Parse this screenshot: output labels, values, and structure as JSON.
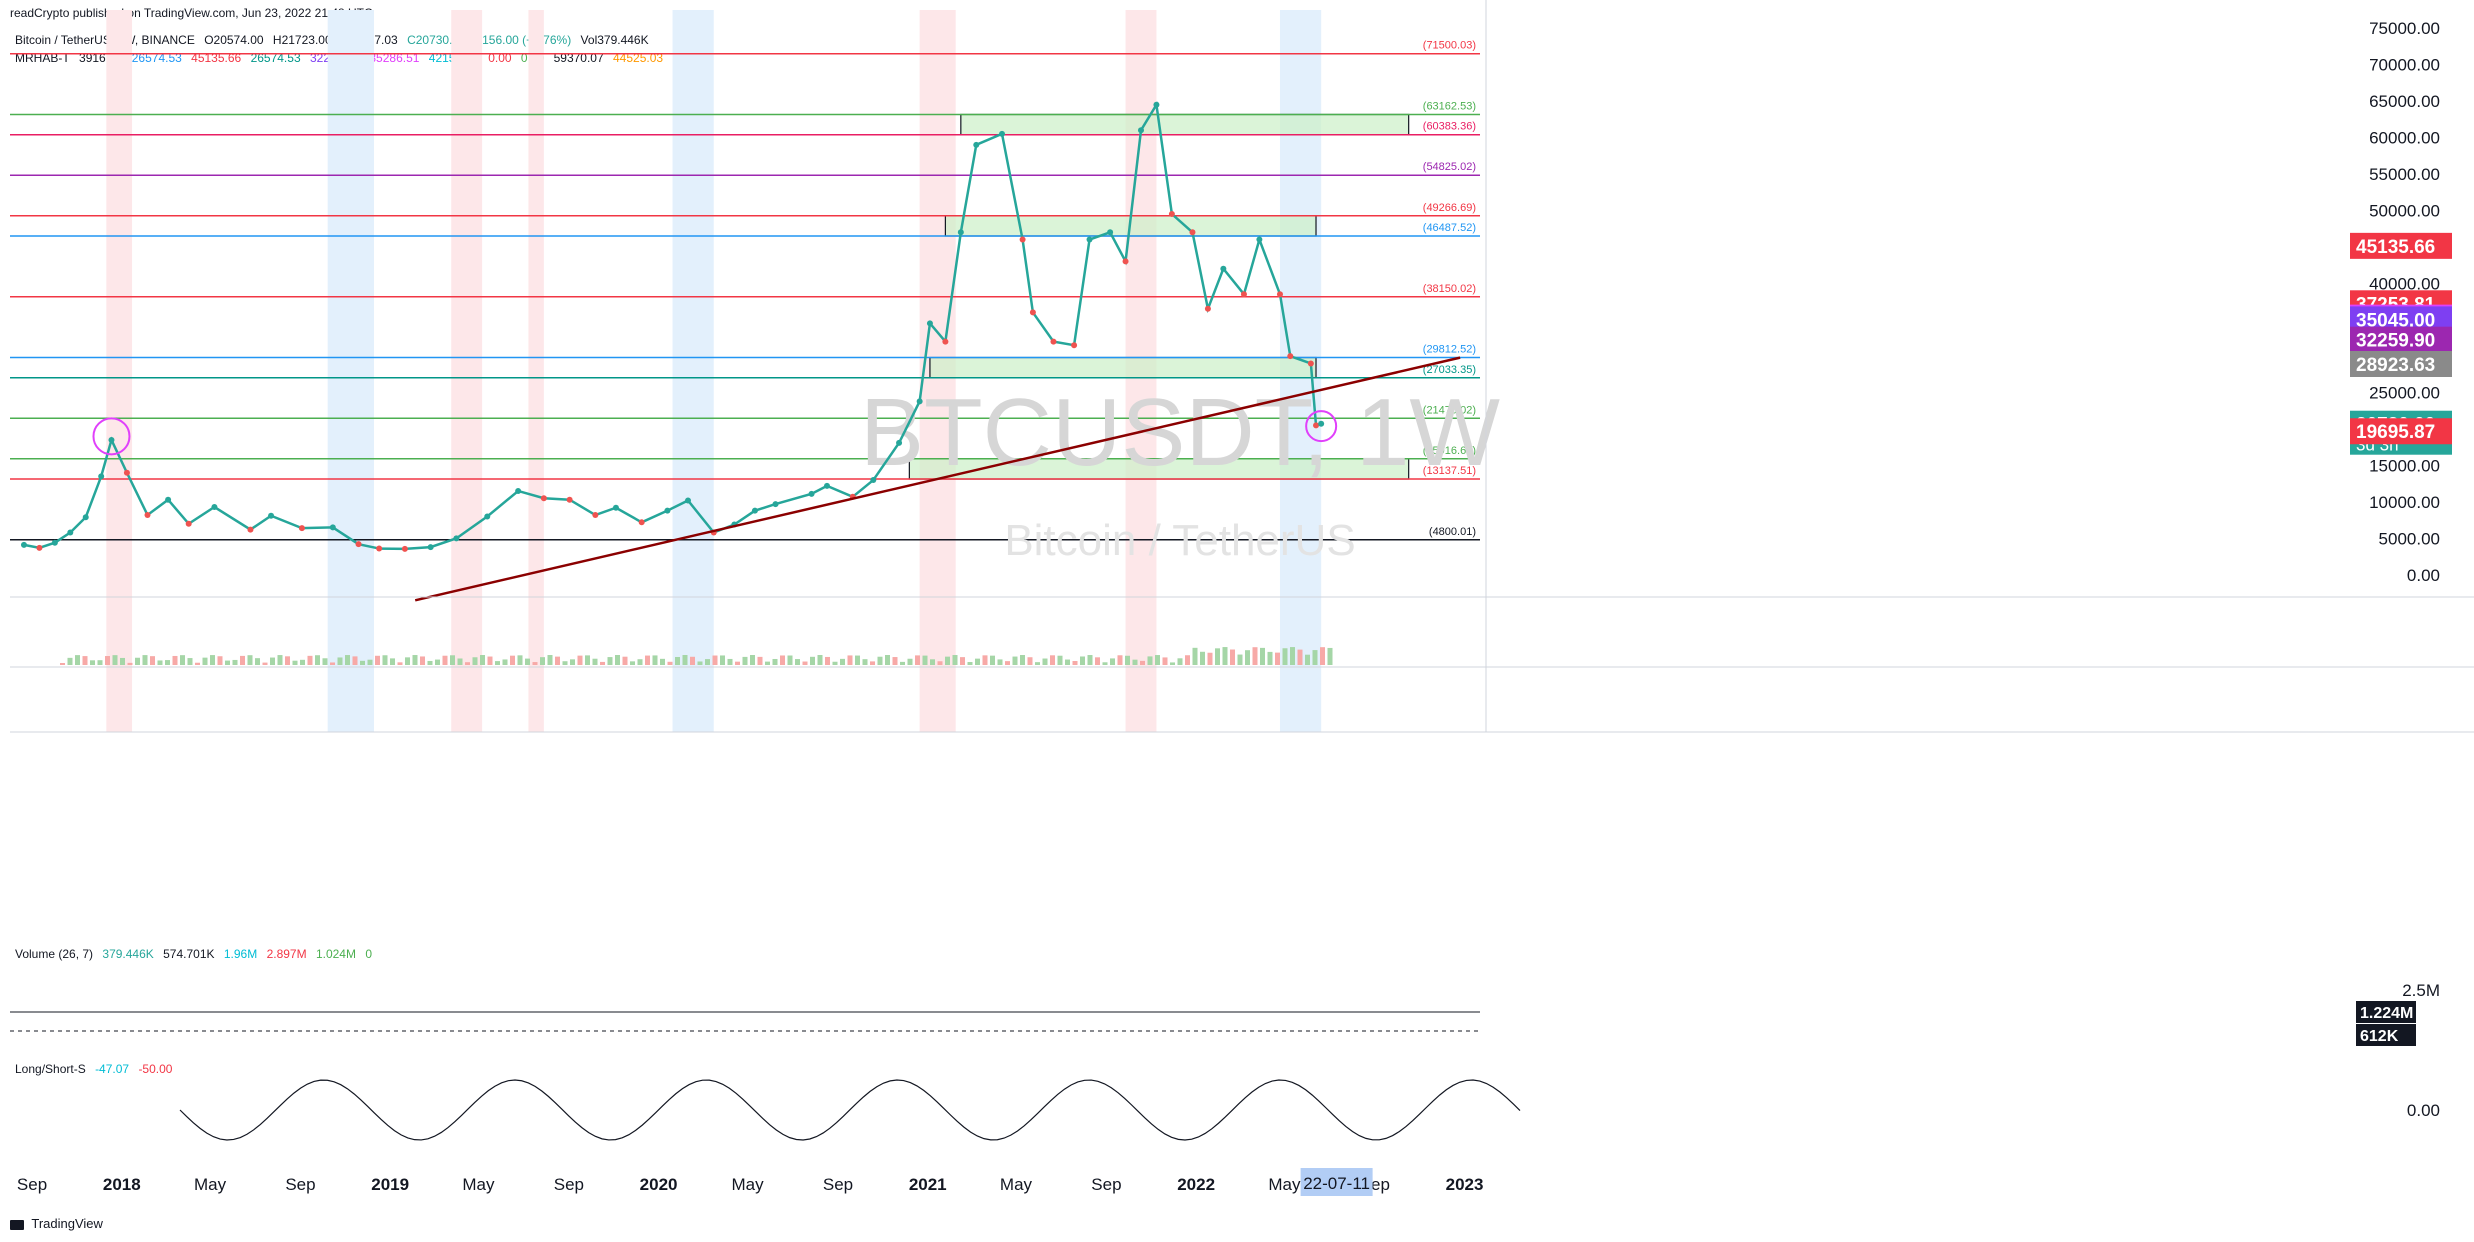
{
  "header": {
    "published": "readCrypto published on TradingView.com, Jun 23, 2022 21:48 UTC",
    "symbol": "Bitcoin / TetherUS, 1W, BINANCE",
    "open": "O20574.00",
    "high": "H21723.00",
    "low": "L19637.03",
    "close": "C20730.00",
    "change": "+156.00 (+0.76%)",
    "volume": "Vol379.446K",
    "indicator_name": "MRHAB-T",
    "indicator_values": [
      "3916.82",
      "26574.53",
      "45135.66",
      "26574.53",
      "32259.90",
      "35286.51",
      "42158.85",
      "0.00",
      "0.00",
      "59370.07",
      "44525.03"
    ]
  },
  "watermark": {
    "symbol": "BTCUSDT, 1W",
    "name": "Bitcoin / TetherUS"
  },
  "volume_pane": {
    "title": "Volume (26, 7)",
    "values": [
      "379.446K",
      "574.701K",
      "1.96M",
      "2.897M",
      "1.024M",
      "0"
    ],
    "axis_label": "2.5M",
    "badge_1224": "1.224M",
    "badge_612": "612K"
  },
  "ls_pane": {
    "title": "Long/Short-S",
    "values": [
      "-47.07",
      "-50.00"
    ],
    "axis_label": "0.00"
  },
  "footer": {
    "brand": "TradingView"
  },
  "colors": {
    "up": "#26a69a",
    "down": "#ef5350",
    "trend": "#8b0000",
    "box_fill": "#ccf0c8",
    "red_band": "#fde7e9",
    "blue_band": "#e3f0fc"
  },
  "chart_data": {
    "type": "line",
    "title": "BTCUSDT, 1W",
    "xlabel": "",
    "ylabel": "",
    "ylim": [
      -2500,
      77500
    ],
    "y_ticks": [
      0,
      5000,
      10000,
      15000,
      20000,
      25000,
      30000,
      35000,
      40000,
      45000,
      50000,
      55000,
      60000,
      65000,
      70000,
      75000
    ],
    "y_tick_labels": [
      "0.00",
      "5000.00",
      "10000.00",
      "15000.00",
      "20000.00",
      "25000.00",
      "30000.00",
      "35000.00",
      "40000.00",
      "45000.00",
      "50000.00",
      "55000.00",
      "60000.00",
      "65000.00",
      "70000.00",
      "75000.00"
    ],
    "x_ticks": [
      {
        "label": "Sep",
        "date": "2017-09-01"
      },
      {
        "label": "2018",
        "date": "2018-01-01"
      },
      {
        "label": "May",
        "date": "2018-05-01"
      },
      {
        "label": "Sep",
        "date": "2018-09-01"
      },
      {
        "label": "2019",
        "date": "2019-01-01"
      },
      {
        "label": "May",
        "date": "2019-05-01"
      },
      {
        "label": "Sep",
        "date": "2019-09-01"
      },
      {
        "label": "2020",
        "date": "2020-01-01"
      },
      {
        "label": "May",
        "date": "2020-05-01"
      },
      {
        "label": "Sep",
        "date": "2020-09-01"
      },
      {
        "label": "2021",
        "date": "2021-01-01"
      },
      {
        "label": "May",
        "date": "2021-05-01"
      },
      {
        "label": "Sep",
        "date": "2021-09-01"
      },
      {
        "label": "2022",
        "date": "2022-01-01"
      },
      {
        "label": "May",
        "date": "2022-05-01"
      },
      {
        "label": "Sep",
        "date": "2022-09-01"
      },
      {
        "label": "2023",
        "date": "2023-01-01"
      }
    ],
    "date_cursor": "22-07-11",
    "series": [
      {
        "color": "#26a69a",
        "points": [
          [
            "2017-08-21",
            4100
          ],
          [
            "2017-09-11",
            3700
          ],
          [
            "2017-10-02",
            4400
          ],
          [
            "2017-10-23",
            5800
          ],
          [
            "2017-11-13",
            7900
          ],
          [
            "2017-12-04",
            13500
          ],
          [
            "2017-12-18",
            18500
          ],
          [
            "2018-01-08",
            14000
          ],
          [
            "2018-02-05",
            8200
          ],
          [
            "2018-03-05",
            10300
          ],
          [
            "2018-04-02",
            7000
          ],
          [
            "2018-05-07",
            9300
          ],
          [
            "2018-06-25",
            6200
          ],
          [
            "2018-07-23",
            8100
          ],
          [
            "2018-09-03",
            6400
          ],
          [
            "2018-10-15",
            6500
          ],
          [
            "2018-11-19",
            4200
          ],
          [
            "2018-12-17",
            3600
          ],
          [
            "2019-01-21",
            3550
          ],
          [
            "2019-02-25",
            3800
          ],
          [
            "2019-04-01",
            5000
          ],
          [
            "2019-05-13",
            8000
          ],
          [
            "2019-06-24",
            11500
          ],
          [
            "2019-07-29",
            10500
          ],
          [
            "2019-09-02",
            10300
          ],
          [
            "2019-10-07",
            8200
          ],
          [
            "2019-11-04",
            9200
          ],
          [
            "2019-12-09",
            7200
          ],
          [
            "2020-01-13",
            8800
          ],
          [
            "2020-02-10",
            10200
          ],
          [
            "2020-03-16",
            5800
          ],
          [
            "2020-04-13",
            6900
          ],
          [
            "2020-05-11",
            8800
          ],
          [
            "2020-06-08",
            9700
          ],
          [
            "2020-07-27",
            11100
          ],
          [
            "2020-08-17",
            12200
          ],
          [
            "2020-09-21",
            10700
          ],
          [
            "2020-10-19",
            13000
          ],
          [
            "2020-11-23",
            18100
          ],
          [
            "2020-12-21",
            23800
          ],
          [
            "2021-01-04",
            34500
          ],
          [
            "2021-01-25",
            32000
          ],
          [
            "2021-02-15",
            47000
          ],
          [
            "2021-03-08",
            59000
          ],
          [
            "2021-04-12",
            60500
          ],
          [
            "2021-05-10",
            46000
          ],
          [
            "2021-05-24",
            36000
          ],
          [
            "2021-06-21",
            32000
          ],
          [
            "2021-07-19",
            31500
          ],
          [
            "2021-08-09",
            46000
          ],
          [
            "2021-09-06",
            47000
          ],
          [
            "2021-09-27",
            43000
          ],
          [
            "2021-10-18",
            61000
          ],
          [
            "2021-11-08",
            64500
          ],
          [
            "2021-11-29",
            49500
          ],
          [
            "2021-12-27",
            47000
          ],
          [
            "2022-01-17",
            36500
          ],
          [
            "2022-02-07",
            42000
          ],
          [
            "2022-03-07",
            38500
          ],
          [
            "2022-03-28",
            46000
          ],
          [
            "2022-04-25",
            38500
          ],
          [
            "2022-05-09",
            30000
          ],
          [
            "2022-06-06",
            29000
          ],
          [
            "2022-06-13",
            20500
          ],
          [
            "2022-06-20",
            20730
          ]
        ]
      }
    ],
    "price_levels": [
      {
        "label": "(71500.03)",
        "value": 71500.03,
        "color": "#f23645"
      },
      {
        "label": "(63162.53)",
        "value": 63162.53,
        "color": "#4caf50"
      },
      {
        "label": "(60383.36)",
        "value": 60383.36,
        "color": "#e91e63"
      },
      {
        "label": "(54825.02)",
        "value": 54825.02,
        "color": "#9c27b0"
      },
      {
        "label": "(49266.69)",
        "value": 49266.69,
        "color": "#f23645"
      },
      {
        "label": "(46487.52)",
        "value": 46487.52,
        "color": "#2196f3"
      },
      {
        "label": "(38150.02)",
        "value": 38150.02,
        "color": "#f23645"
      },
      {
        "label": "(29812.52)",
        "value": 29812.52,
        "color": "#2196f3"
      },
      {
        "label": "(27033.35)",
        "value": 27033.35,
        "color": "#009688"
      },
      {
        "label": "(21475.02)",
        "value": 21475.02,
        "color": "#4caf50"
      },
      {
        "label": "(15916.68)",
        "value": 15916.68,
        "color": "#4caf50"
      },
      {
        "label": "(13137.51)",
        "value": 13137.51,
        "color": "#f23645"
      },
      {
        "label": "(4800.01)",
        "value": 4800.01,
        "color": "#131722"
      }
    ],
    "price_badges": [
      {
        "label": "45135.66",
        "value": 45135.66,
        "color": "#f23645"
      },
      {
        "label": "37253.81",
        "value": 37253.81,
        "color": "#f23645"
      },
      {
        "label": "35286.51",
        "value": 35286.51,
        "color": "#e040fb"
      },
      {
        "label": "35045.00",
        "value": 35045.0,
        "color": "#7e3ff2"
      },
      {
        "label": "32259.90",
        "value": 32259.9,
        "color": "#9c27b0"
      },
      {
        "label": "28923.63",
        "value": 28923.63,
        "color": "#8a8a8a"
      },
      {
        "label": "20730.00",
        "value": 20730.0,
        "color": "#26a69a",
        "sub": "3d 3h"
      },
      {
        "label": "19695.87",
        "value": 19695.87,
        "color": "#f23645"
      }
    ],
    "zones": [
      {
        "from": "2021-02-15",
        "to": "2022-10-17",
        "low": 60383.36,
        "high": 63162.53
      },
      {
        "from": "2021-01-25",
        "to": "2022-06-13",
        "low": 46487.52,
        "high": 49266.69
      },
      {
        "from": "2021-01-04",
        "to": "2022-06-13",
        "low": 27033.35,
        "high": 29812.52
      },
      {
        "from": "2020-12-07",
        "to": "2022-10-17",
        "low": 13137.51,
        "high": 15916.68
      }
    ],
    "trendline": {
      "from": [
        "2019-02-04",
        -3500
      ],
      "to": [
        "2022-12-26",
        29800
      ]
    }
  }
}
